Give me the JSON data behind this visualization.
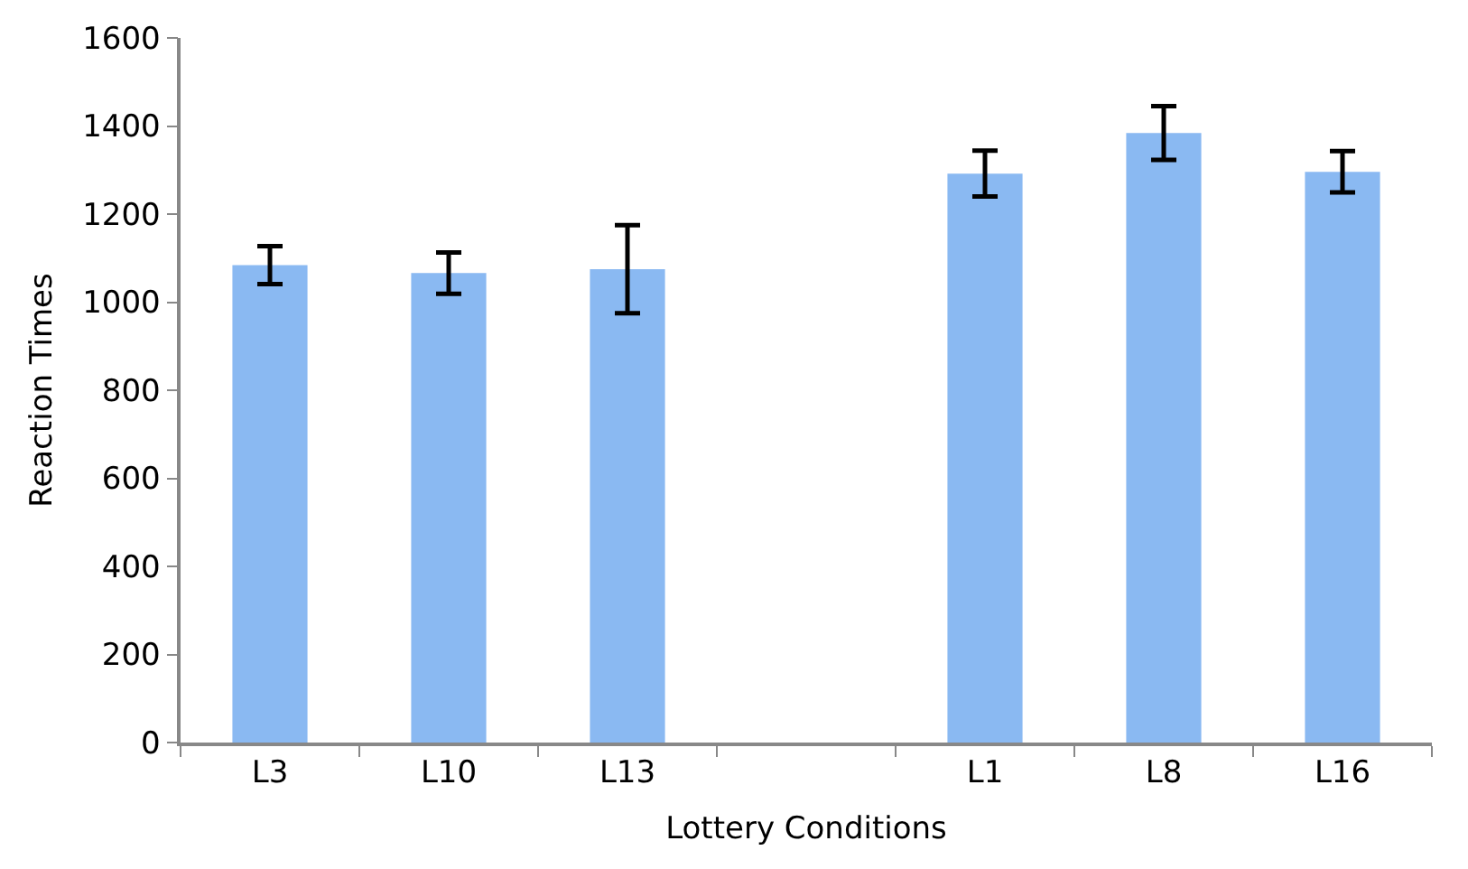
{
  "chart_data": {
    "type": "bar",
    "xlabel": "Lottery Conditions",
    "ylabel": "Reaction Times",
    "categories": [
      "L3",
      "L10",
      "L13",
      null,
      "L1",
      "L8",
      "L16"
    ],
    "values": [
      1084,
      1066,
      1075,
      null,
      1292,
      1384,
      1296
    ],
    "errors": [
      43,
      47,
      100,
      null,
      52,
      61,
      47
    ],
    "color": "#8ab9f2",
    "ylim": [
      0,
      1600
    ],
    "yticks": [
      0,
      200,
      400,
      600,
      800,
      1000,
      1200,
      1400,
      1600
    ]
  }
}
